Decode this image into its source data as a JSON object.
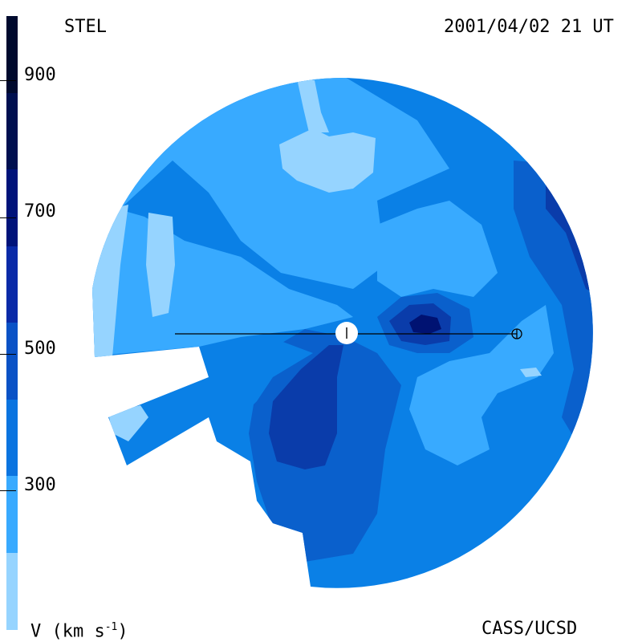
{
  "header": {
    "instrument": "STEL",
    "datetime": "2001/04/02 21 UT"
  },
  "footer": {
    "legend_label_prefix": "V (km s",
    "legend_label_exp": "-1",
    "legend_label_suffix": ")",
    "credit": "CASS/UCSD"
  },
  "colorbar": {
    "ticks": [
      "900",
      "700",
      "500",
      "300"
    ],
    "colors": [
      "#000a2e",
      "#001050",
      "#00137a",
      "#0a2aa8",
      "#0a52c6",
      "#0a74e0",
      "#38aaff",
      "#96d4ff"
    ]
  },
  "map": {
    "palette": {
      "lightest": "#96d4ff",
      "light": "#38aaff",
      "medium": "#0a80e6",
      "medium_dark": "#0a60cc",
      "dark": "#0a3caa",
      "darker": "#0a2496",
      "darkest": "#001272",
      "sun": "#ffffff",
      "line": "#000000"
    }
  }
}
